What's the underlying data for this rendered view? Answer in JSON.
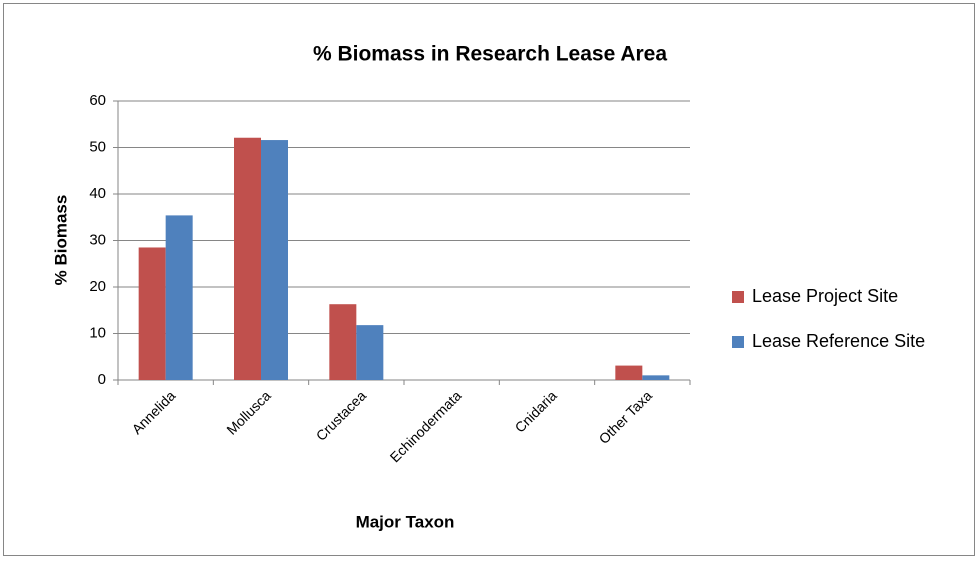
{
  "chart_data": {
    "type": "bar",
    "title": "% Biomass in Research Lease Area",
    "x_label": "Major Taxon",
    "y_label": "% Biomass",
    "categories": [
      "Annelida",
      "Mollusca",
      "Crustacea",
      "Echinodermata",
      "Cnidaria",
      "Other Taxa"
    ],
    "series": [
      {
        "name": "Lease Project Site",
        "color": "#c0504d",
        "values": [
          28.5,
          52.1,
          16.3,
          0,
          0,
          3.1
        ]
      },
      {
        "name": "Lease Reference Site",
        "color": "#4f81bd",
        "values": [
          35.4,
          51.6,
          11.8,
          0,
          0,
          1.0
        ]
      }
    ],
    "ylim": [
      0,
      60
    ],
    "yticks": [
      0,
      10,
      20,
      30,
      40,
      50,
      60
    ],
    "grid": true,
    "legend": "right"
  }
}
